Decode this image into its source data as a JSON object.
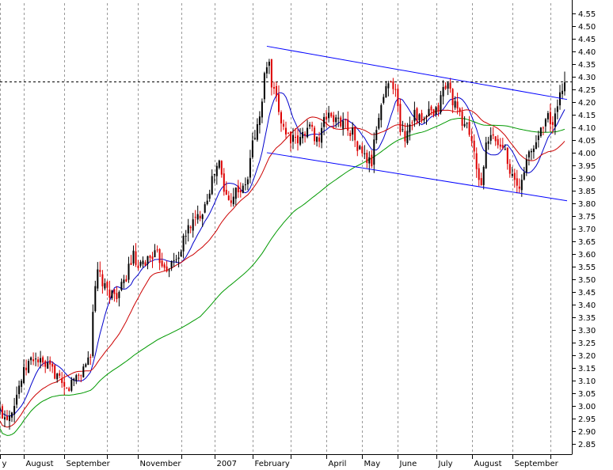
{
  "chart_data": {
    "type": "candlestick",
    "title": "",
    "xlabel": "",
    "ylabel": "",
    "ylim": [
      2.81,
      4.59
    ],
    "y_axis_side": "right",
    "grid": "vertical-dashed",
    "y_ticks": [
      2.85,
      2.9,
      2.95,
      3.0,
      3.05,
      3.1,
      3.15,
      3.2,
      3.25,
      3.3,
      3.35,
      3.4,
      3.45,
      3.5,
      3.55,
      3.6,
      3.65,
      3.7,
      3.75,
      3.8,
      3.85,
      3.9,
      3.95,
      4.0,
      4.05,
      4.1,
      4.15,
      4.2,
      4.25,
      4.3,
      4.35,
      4.4,
      4.45,
      4.5,
      4.55
    ],
    "y_tick_labels": [
      "2.85",
      "2.90",
      "2.95",
      "3.00",
      "3.05",
      "3.10",
      "3.15",
      "3.20",
      "3.25",
      "3.30",
      "3.35",
      "3.40",
      "3.45",
      "3.50",
      "3.55",
      "3.60",
      "3.65",
      "3.70",
      "3.75",
      "3.80",
      "3.85",
      "3.90",
      "3.95",
      "4.00",
      "4.05",
      "4.10",
      "4.15",
      "4.20",
      "4.25",
      "4.30",
      "4.35",
      "4.40",
      "4.45",
      "4.50",
      "4.55"
    ],
    "x_range": [
      0,
      240
    ],
    "month_ticks": [
      {
        "label": "y",
        "x": 0
      },
      {
        "label": "August",
        "x": 10
      },
      {
        "label": "September",
        "x": 27
      },
      {
        "label": "",
        "x": 45
      },
      {
        "label": "November",
        "x": 58
      },
      {
        "label": "",
        "x": 76
      },
      {
        "label": "2007",
        "x": 90
      },
      {
        "label": "February",
        "x": 106
      },
      {
        "label": "",
        "x": 122
      },
      {
        "label": "April",
        "x": 137
      },
      {
        "label": "May",
        "x": 152
      },
      {
        "label": "June",
        "x": 167
      },
      {
        "label": "July",
        "x": 183
      },
      {
        "label": "August",
        "x": 198
      },
      {
        "label": "September",
        "x": 215
      },
      {
        "label": "",
        "x": 231
      }
    ],
    "reference_line": {
      "value": 4.28,
      "style": "dashed",
      "color": "#000000"
    },
    "price_anchors": [
      [
        0,
        2.98
      ],
      [
        2,
        2.96
      ],
      [
        4,
        2.97
      ],
      [
        6,
        3.02
      ],
      [
        8,
        3.08
      ],
      [
        10,
        3.13
      ],
      [
        12,
        3.17
      ],
      [
        14,
        3.19
      ],
      [
        16,
        3.18
      ],
      [
        18,
        3.16
      ],
      [
        20,
        3.15
      ],
      [
        22,
        3.14
      ],
      [
        24,
        3.12
      ],
      [
        26,
        3.07
      ],
      [
        28,
        3.06
      ],
      [
        30,
        3.09
      ],
      [
        32,
        3.12
      ],
      [
        34,
        3.13
      ],
      [
        36,
        3.17
      ],
      [
        38,
        3.21
      ],
      [
        39,
        3.38
      ],
      [
        40,
        3.45
      ],
      [
        41,
        3.53
      ],
      [
        42,
        3.51
      ],
      [
        44,
        3.46
      ],
      [
        46,
        3.45
      ],
      [
        48,
        3.44
      ],
      [
        50,
        3.45
      ],
      [
        52,
        3.48
      ],
      [
        54,
        3.55
      ],
      [
        56,
        3.59
      ],
      [
        58,
        3.53
      ],
      [
        60,
        3.56
      ],
      [
        62,
        3.58
      ],
      [
        64,
        3.6
      ],
      [
        66,
        3.59
      ],
      [
        68,
        3.57
      ],
      [
        70,
        3.55
      ],
      [
        72,
        3.56
      ],
      [
        74,
        3.58
      ],
      [
        76,
        3.62
      ],
      [
        78,
        3.68
      ],
      [
        80,
        3.72
      ],
      [
        82,
        3.73
      ],
      [
        84,
        3.76
      ],
      [
        86,
        3.8
      ],
      [
        88,
        3.86
      ],
      [
        90,
        3.92
      ],
      [
        92,
        3.96
      ],
      [
        94,
        3.85
      ],
      [
        96,
        3.81
      ],
      [
        98,
        3.84
      ],
      [
        100,
        3.86
      ],
      [
        102,
        3.85
      ],
      [
        104,
        3.9
      ],
      [
        106,
        4.04
      ],
      [
        108,
        4.1
      ],
      [
        110,
        4.2
      ],
      [
        111,
        4.3
      ],
      [
        112,
        4.35
      ],
      [
        113,
        4.34
      ],
      [
        114,
        4.26
      ],
      [
        116,
        4.2
      ],
      [
        118,
        4.13
      ],
      [
        120,
        4.08
      ],
      [
        122,
        4.06
      ],
      [
        124,
        4.04
      ],
      [
        126,
        4.05
      ],
      [
        128,
        4.09
      ],
      [
        130,
        4.1
      ],
      [
        132,
        4.07
      ],
      [
        134,
        4.05
      ],
      [
        136,
        4.12
      ],
      [
        138,
        4.16
      ],
      [
        140,
        4.13
      ],
      [
        142,
        4.12
      ],
      [
        144,
        4.13
      ],
      [
        146,
        4.1
      ],
      [
        148,
        4.08
      ],
      [
        150,
        4.02
      ],
      [
        152,
        4.0
      ],
      [
        154,
        3.97
      ],
      [
        156,
        3.96
      ],
      [
        158,
        4.1
      ],
      [
        160,
        4.19
      ],
      [
        162,
        4.25
      ],
      [
        164,
        4.3
      ],
      [
        166,
        4.24
      ],
      [
        168,
        4.1
      ],
      [
        170,
        4.06
      ],
      [
        172,
        4.12
      ],
      [
        174,
        4.16
      ],
      [
        176,
        4.13
      ],
      [
        178,
        4.12
      ],
      [
        180,
        4.16
      ],
      [
        182,
        4.14
      ],
      [
        184,
        4.18
      ],
      [
        186,
        4.25
      ],
      [
        188,
        4.27
      ],
      [
        190,
        4.21
      ],
      [
        192,
        4.16
      ],
      [
        194,
        4.12
      ],
      [
        196,
        4.11
      ],
      [
        198,
        4.05
      ],
      [
        200,
        3.92
      ],
      [
        202,
        3.88
      ],
      [
        204,
        4.02
      ],
      [
        206,
        4.06
      ],
      [
        208,
        4.05
      ],
      [
        210,
        4.02
      ],
      [
        212,
        4.03
      ],
      [
        214,
        3.93
      ],
      [
        216,
        3.88
      ],
      [
        218,
        3.85
      ],
      [
        220,
        3.94
      ],
      [
        222,
        3.99
      ],
      [
        224,
        4.02
      ],
      [
        226,
        4.07
      ],
      [
        228,
        4.12
      ],
      [
        230,
        4.14
      ],
      [
        232,
        4.11
      ],
      [
        234,
        4.17
      ],
      [
        236,
        4.26
      ],
      [
        237,
        4.29
      ]
    ],
    "series": [
      {
        "kind": "moving-average",
        "color": "#0000cc",
        "period": 10
      },
      {
        "kind": "moving-average",
        "color": "#cc0000",
        "period": 25
      },
      {
        "kind": "moving-average",
        "color": "#009900",
        "period": 85
      }
    ],
    "channel": {
      "color": "#0000ff",
      "upper": [
        [
          112,
          4.42
        ],
        [
          238,
          4.21
        ]
      ],
      "lower": [
        [
          112,
          4.0
        ],
        [
          238,
          3.81
        ]
      ]
    }
  }
}
